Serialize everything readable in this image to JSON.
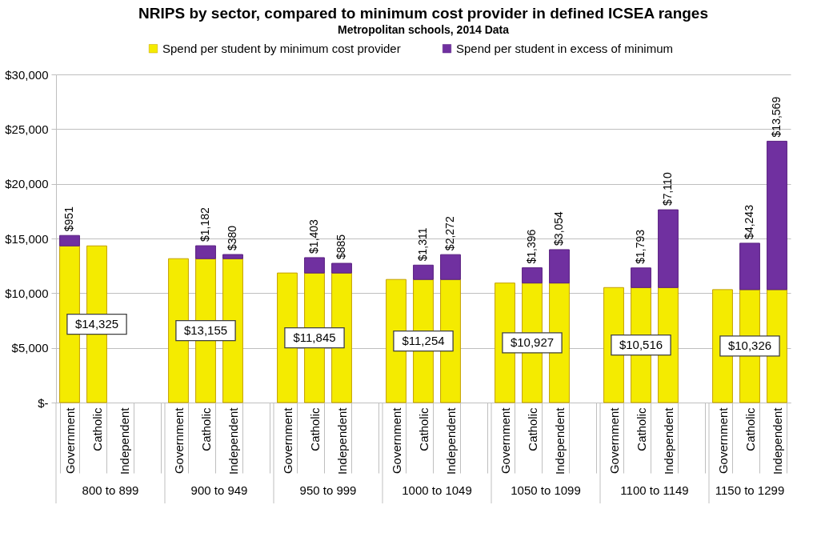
{
  "chart_data": {
    "type": "bar",
    "title": "NRIPS by sector, compared to minimum cost provider in defined ICSEA ranges",
    "subtitle": "Metropolitan schools, 2014 Data",
    "categories": [
      "Government",
      "Catholic",
      "Independent",
      null,
      "Government",
      "Catholic",
      "Independent",
      null,
      "Government",
      "Catholic",
      "Independent",
      null,
      "Government",
      "Catholic",
      "Independent",
      null,
      "Government",
      "Catholic",
      "Independent",
      null,
      "Government",
      "Catholic",
      "Independent",
      null,
      "Government",
      "Catholic",
      "Independent"
    ],
    "stacked": true,
    "series": [
      {
        "name": "Spend per student by minimum cost provider",
        "color": "#f4eb00",
        "values": [
          14325,
          14325,
          null,
          null,
          13155,
          13155,
          13155,
          null,
          11845,
          11845,
          11845,
          null,
          11254,
          11254,
          11254,
          null,
          10927,
          10927,
          10927,
          null,
          10516,
          10516,
          10516,
          null,
          10326,
          10326,
          10326
        ],
        "value_labels": [
          null,
          "$14,325",
          null,
          null,
          null,
          "$13,155",
          null,
          null,
          null,
          "$11,845",
          null,
          null,
          null,
          "$11,254",
          null,
          null,
          null,
          "$10,927",
          null,
          null,
          null,
          "$10,516",
          null,
          null,
          null,
          "$10,326",
          null
        ]
      },
      {
        "name": "Spend per student in excess of minimum",
        "color": "#7030a0",
        "values": [
          951,
          null,
          null,
          null,
          null,
          1182,
          380,
          null,
          null,
          1403,
          885,
          null,
          null,
          1311,
          2272,
          null,
          null,
          1396,
          3054,
          null,
          null,
          1793,
          7110,
          null,
          null,
          4243,
          13569
        ],
        "value_labels": [
          "$951",
          null,
          null,
          null,
          null,
          "$1,182",
          "$380",
          null,
          null,
          "$1,403",
          "$885",
          null,
          null,
          "$1,311",
          "$2,272",
          null,
          null,
          "$1,396",
          "$3,054",
          null,
          null,
          "$1,793",
          "$7,110",
          null,
          null,
          "$4,243",
          "$13,569"
        ]
      }
    ],
    "annotations": [
      "800 to 899",
      "900 to 949",
      "950 to 999",
      "1000 to 1049",
      "1050 to 1099",
      "1100 to 1149",
      "1150 to 1299"
    ],
    "ylim": [
      0,
      30000
    ],
    "yticks": [
      {
        "value": 0,
        "label": "$-"
      },
      {
        "value": 5000,
        "label": "$5,000"
      },
      {
        "value": 10000,
        "label": "$10,000"
      },
      {
        "value": 15000,
        "label": "$15,000"
      },
      {
        "value": 20000,
        "label": "$20,000"
      },
      {
        "value": 25000,
        "label": "$25,000"
      },
      {
        "value": 30000,
        "label": "$30,000"
      }
    ],
    "grid": "y",
    "legend": "top"
  }
}
